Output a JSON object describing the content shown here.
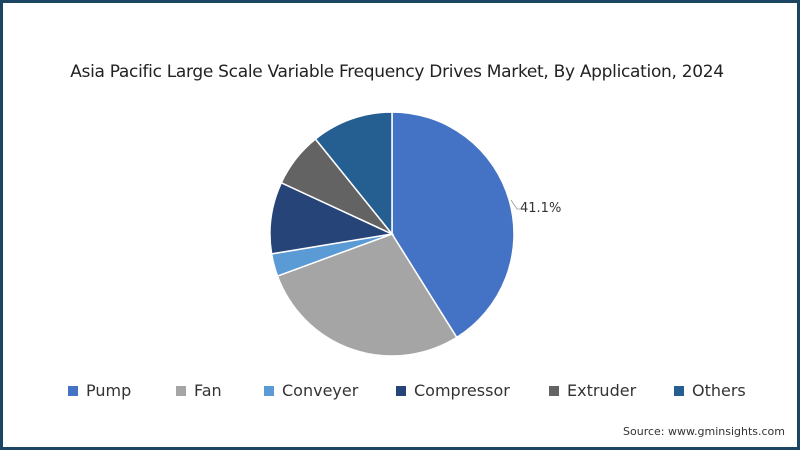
{
  "chart_data": {
    "type": "pie",
    "title": "Asia Pacific Large Scale Variable Frequency Drives Market, By Application, 2024",
    "categories": [
      "Pump",
      "Fan",
      "Conveyer",
      "Compressor",
      "Extruder",
      "Others"
    ],
    "values": [
      41.1,
      28.3,
      3.0,
      9.5,
      7.3,
      10.8
    ],
    "colors": [
      "#4472c4",
      "#a5a5a5",
      "#5b9bd5",
      "#264478",
      "#636363",
      "#255e91"
    ],
    "data_labels": [
      {
        "category": "Pump",
        "text": "41.1%"
      }
    ],
    "legend_position": "bottom",
    "start_angle_deg": 0,
    "direction": "clockwise"
  },
  "title": "Asia Pacific Large Scale Variable Frequency Drives Market, By Application, 2024",
  "data_label": "41.1%",
  "legend": [
    {
      "label": "Pump",
      "color": "#4472c4"
    },
    {
      "label": "Fan",
      "color": "#a5a5a5"
    },
    {
      "label": "Conveyer",
      "color": "#5b9bd5"
    },
    {
      "label": "Compressor",
      "color": "#264478"
    },
    {
      "label": "Extruder",
      "color": "#636363"
    },
    {
      "label": "Others",
      "color": "#255e91"
    }
  ],
  "source": "Source: www.gminsights.com",
  "frame_color": "#1c4563"
}
